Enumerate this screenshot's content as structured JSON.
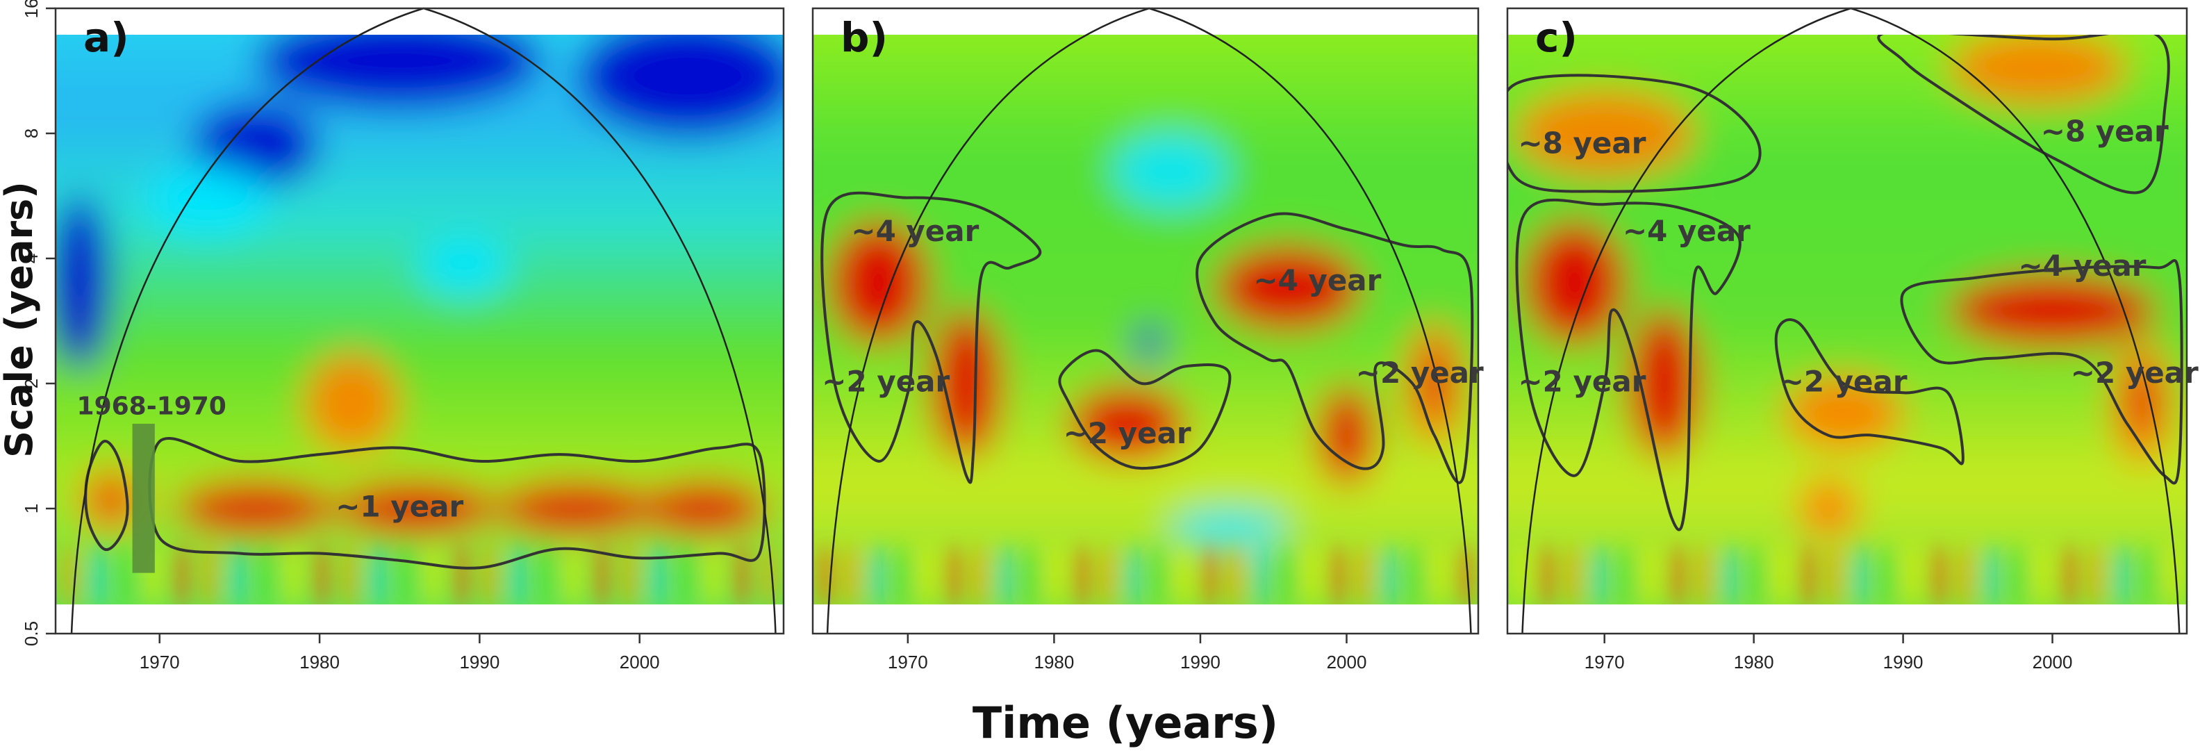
{
  "chart_data": {
    "type": "heatmap",
    "subtype": "wavelet-power-spectrum",
    "shared_axes": {
      "xlabel": "Time (years)",
      "ylabel": "Scale (years)",
      "xlim": [
        1963.5,
        2009
      ],
      "ylim": [
        0.5,
        16
      ],
      "y_scale": "log2",
      "x_ticks": [
        "1970",
        "1980",
        "1990",
        "2000"
      ],
      "y_ticks": [
        "0.5",
        "1",
        "2",
        "4",
        "8",
        "16"
      ]
    },
    "colormap": [
      "#0000cc",
      "#00e5ff",
      "#00e600",
      "#e6f000",
      "#ff8000",
      "#e60000"
    ],
    "cone_of_influence_apex": {
      "x": 1986.5,
      "y": 16
    },
    "panels": [
      {
        "label": "a)",
        "annotations": [
          {
            "text": "~1 year",
            "x": 1985,
            "y": 1.0
          },
          {
            "text": "1968-1970",
            "x": 1969.5,
            "y": 1.75
          }
        ],
        "highlight_bar": {
          "x_start": 1968.3,
          "x_end": 1969.7,
          "y_low": 0.7,
          "y_high": 1.6
        },
        "hotspots": [
          {
            "x": 1967,
            "y": 1.05,
            "power": 0.75,
            "rx": 2,
            "ry": 0.25
          },
          {
            "x": 1976,
            "y": 1.0,
            "power": 0.85,
            "rx": 5,
            "ry": 0.22
          },
          {
            "x": 1986,
            "y": 1.0,
            "power": 0.85,
            "rx": 5,
            "ry": 0.22
          },
          {
            "x": 1996,
            "y": 1.0,
            "power": 0.82,
            "rx": 5,
            "ry": 0.22
          },
          {
            "x": 2004,
            "y": 1.0,
            "power": 0.8,
            "rx": 4,
            "ry": 0.22
          },
          {
            "x": 1982,
            "y": 1.8,
            "power": 0.45,
            "rx": 3,
            "ry": 0.4
          },
          {
            "x": 1985,
            "y": 12,
            "power": -0.9,
            "rx": 9,
            "ry": 0.4
          },
          {
            "x": 2003,
            "y": 11,
            "power": -1.0,
            "rx": 7,
            "ry": 0.5
          },
          {
            "x": 1976,
            "y": 7.5,
            "power": -0.8,
            "rx": 4,
            "ry": 0.35
          },
          {
            "x": 1965,
            "y": 3.5,
            "power": -0.8,
            "rx": 2,
            "ry": 0.7
          },
          {
            "x": 1989,
            "y": 3.8,
            "power": -0.7,
            "rx": 3,
            "ry": 0.25
          },
          {
            "x": 1973,
            "y": 5.5,
            "power": -0.5,
            "rx": 4,
            "ry": 0.3
          }
        ],
        "significance_contours": [
          {
            "label": "~1 year",
            "x": [
              1970,
              1975,
              1980,
              1985,
              1990,
              1995,
              2000,
              2005,
              2007.5,
              2007.5,
              2005,
              2000,
              1995,
              1990,
              1985,
              1980,
              1975,
              1970
            ],
            "y": [
              1.45,
              1.3,
              1.35,
              1.4,
              1.3,
              1.35,
              1.3,
              1.4,
              1.35,
              0.78,
              0.78,
              0.76,
              0.8,
              0.72,
              0.75,
              0.78,
              0.78,
              0.85
            ]
          },
          {
            "label": "",
            "x": [
              1965.5,
              1966.5,
              1967.5,
              1968,
              1967.5,
              1966.5,
              1965.5
            ],
            "y": [
              1.2,
              1.45,
              1.3,
              1.0,
              0.85,
              0.8,
              0.95
            ]
          }
        ]
      },
      {
        "label": "b)",
        "annotations": [
          {
            "text": "~4 year",
            "x": 1970.5,
            "y": 4.6
          },
          {
            "text": "~2 year",
            "x": 1968.5,
            "y": 2.0
          },
          {
            "text": "~2 year",
            "x": 1985,
            "y": 1.5
          },
          {
            "text": "~4 year",
            "x": 1998,
            "y": 3.5
          },
          {
            "text": "~2 year",
            "x": 2005,
            "y": 2.1
          }
        ],
        "hotspots": [
          {
            "x": 1968,
            "y": 3.5,
            "power": 0.9,
            "rx": 3.5,
            "ry": 0.5
          },
          {
            "x": 1974,
            "y": 2.0,
            "power": 0.85,
            "rx": 2.5,
            "ry": 0.6
          },
          {
            "x": 1985,
            "y": 1.6,
            "power": 0.8,
            "rx": 4,
            "ry": 0.3
          },
          {
            "x": 1996,
            "y": 3.4,
            "power": 0.9,
            "rx": 5,
            "ry": 0.35
          },
          {
            "x": 2000,
            "y": 1.5,
            "power": 0.85,
            "rx": 2,
            "ry": 0.4
          },
          {
            "x": 2006,
            "y": 2.0,
            "power": 0.75,
            "rx": 2,
            "ry": 0.5
          },
          {
            "x": 1986.5,
            "y": 2.5,
            "power": -1.0,
            "rx": 1,
            "ry": 0.15
          },
          {
            "x": 1992,
            "y": 0.9,
            "power": -0.7,
            "rx": 4,
            "ry": 0.15
          },
          {
            "x": 1988,
            "y": 6.5,
            "power": -0.45,
            "rx": 4,
            "ry": 0.3
          }
        ],
        "significance_contours": [
          {
            "label": "~4 year",
            "x": [
              1964.5,
              1970,
              1975,
              1979,
              1977,
              1975,
              1974.5,
              1974,
              1972,
              1970.5,
              1970,
              1968,
              1965
            ],
            "y": [
              5.2,
              5.6,
              5.3,
              4.2,
              3.8,
              3.6,
              1.4,
              1.2,
              2.3,
              2.8,
              1.9,
              1.3,
              2.0
            ]
          },
          {
            "label": "~2 year",
            "x": [
              1980.5,
              1983,
              1986,
              1989,
              1992,
              1990,
              1986,
              1983,
              1981
            ],
            "y": [
              2.1,
              2.4,
              2.0,
              2.2,
              2.1,
              1.4,
              1.25,
              1.4,
              1.8
            ]
          },
          {
            "label": "~4 year",
            "x": [
              1990,
              1995,
              2000,
              2004,
              2006.5,
              2008.5,
              2008,
              2006,
              2004.5,
              2002,
              2002.5,
              2001,
              1998,
              1996,
              1994.5,
              1991
            ],
            "y": [
              4.0,
              5.1,
              4.7,
              4.3,
              4.2,
              3.5,
              1.2,
              1.5,
              2.0,
              2.2,
              1.4,
              1.25,
              1.5,
              2.2,
              2.3,
              2.8
            ]
          }
        ]
      },
      {
        "label": "c)",
        "annotations": [
          {
            "text": "~8 year",
            "x": 1968.5,
            "y": 7.5
          },
          {
            "text": "~8 year",
            "x": 2003.5,
            "y": 8.0
          },
          {
            "text": "~4 year",
            "x": 1975.5,
            "y": 4.6
          },
          {
            "text": "~4 year",
            "x": 2002,
            "y": 3.8
          },
          {
            "text": "~2 year",
            "x": 1968.5,
            "y": 2.0
          },
          {
            "text": "~2 year",
            "x": 1986,
            "y": 2.0
          },
          {
            "text": "~2 year",
            "x": 2005.5,
            "y": 2.1
          }
        ],
        "hotspots": [
          {
            "x": 1970,
            "y": 8.0,
            "power": 0.7,
            "rx": 6,
            "ry": 0.35
          },
          {
            "x": 1999,
            "y": 11.5,
            "power": 0.7,
            "rx": 6,
            "ry": 0.3
          },
          {
            "x": 1968,
            "y": 3.5,
            "power": 0.9,
            "rx": 3.5,
            "ry": 0.5
          },
          {
            "x": 1974,
            "y": 2.0,
            "power": 0.85,
            "rx": 2.5,
            "ry": 0.6
          },
          {
            "x": 1986,
            "y": 1.7,
            "power": 0.7,
            "rx": 4,
            "ry": 0.3
          },
          {
            "x": 2000,
            "y": 3.0,
            "power": 0.8,
            "rx": 7,
            "ry": 0.3
          },
          {
            "x": 2006,
            "y": 1.8,
            "power": 0.75,
            "rx": 2,
            "ry": 0.5
          },
          {
            "x": 1985,
            "y": 1.0,
            "power": 0.6,
            "rx": 2,
            "ry": 0.25
          }
        ],
        "significance_contours": [
          {
            "label": "~8 year",
            "x": [
              1964,
              1975,
              1980,
              1979,
              1970,
              1964
            ],
            "y": [
              10.5,
              10.5,
              8.0,
              6.2,
              5.8,
              6.3
            ]
          },
          {
            "label": "~8 year",
            "x": [
              1989,
              2000,
              2007,
              2007.5,
              2006,
              2000,
              1993,
              1990
            ],
            "y": [
              14.0,
              13.5,
              13.8,
              9.0,
              5.8,
              7.0,
              10.0,
              12.0
            ]
          },
          {
            "label": "~4 year",
            "x": [
              1964.5,
              1970,
              1975,
              1979,
              1977.5,
              1976,
              1975.5,
              1974.5,
              1972,
              1970.5,
              1970,
              1968,
              1965
            ],
            "y": [
              5.0,
              5.4,
              5.3,
              4.5,
              3.3,
              3.6,
              1.1,
              0.95,
              2.3,
              3.0,
              2.0,
              1.2,
              1.9
            ]
          },
          {
            "label": "~2 year",
            "x": [
              1981.5,
              1983,
              1986,
              1990,
              1993,
              1994,
              1992.5,
              1988,
              1985,
              1982.5
            ],
            "y": [
              2.6,
              2.8,
              2.0,
              1.9,
              1.9,
              1.3,
              1.4,
              1.5,
              1.5,
              1.8
            ]
          },
          {
            "label": "~4 year",
            "x": [
              1990,
              1995,
              2002,
              2007,
              2008.5,
              2008.5,
              2007.5,
              2005,
              2002,
              1996,
              1992
            ],
            "y": [
              3.3,
              3.6,
              3.8,
              3.8,
              3.6,
              1.3,
              1.2,
              1.6,
              2.3,
              2.3,
              2.3
            ]
          }
        ]
      }
    ]
  }
}
